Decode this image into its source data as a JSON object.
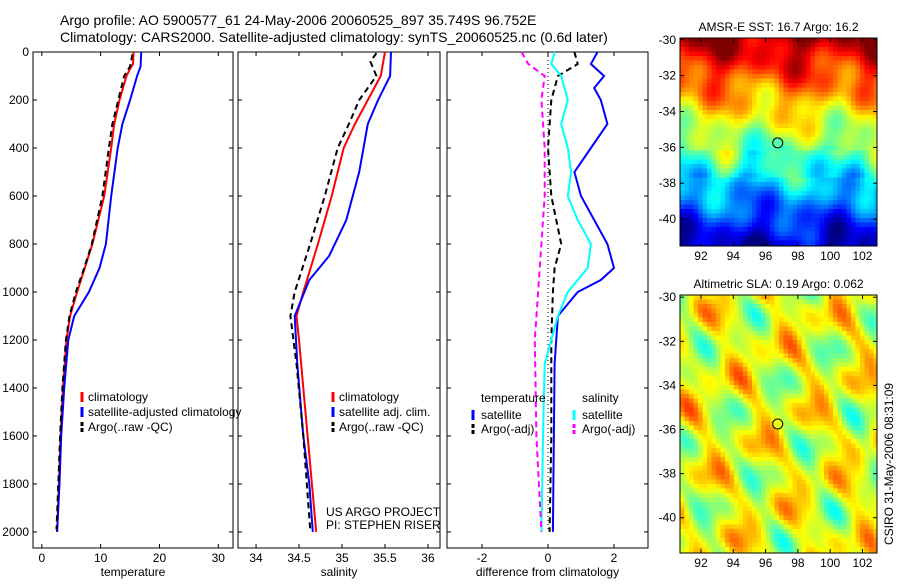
{
  "header": {
    "line1": "Argo profile: AO 5900577_61 24-May-2006 20060525_897 35.749S 96.752E",
    "line2": "Climatology: CARS2000. Satellite-adjusted climatology: synTS_20060525.nc (0.6d later)"
  },
  "credit": "CSIRO 31-May-2006 08:31:09",
  "colors": {
    "climatology": "#ff0000",
    "satellite": "#0000ff",
    "argo": "#000000",
    "sal_satellite": "#00ffff",
    "sal_argo": "#ff00ff"
  },
  "chart_data": [
    {
      "type": "line",
      "id": "temperature",
      "xlabel": "temperature",
      "ylabel": "",
      "xlim": [
        -1.5,
        32.5
      ],
      "ylim": [
        2067,
        0
      ],
      "xticks": [
        "0",
        "10",
        "20",
        "30"
      ],
      "xtick_values": [
        0,
        10,
        20,
        30
      ],
      "yticks": [
        "0",
        "200",
        "400",
        "600",
        "800",
        "1000",
        "1200",
        "1400",
        "1600",
        "1800",
        "2000"
      ],
      "ytick_values": [
        0,
        200,
        400,
        600,
        800,
        1000,
        1200,
        1400,
        1600,
        1800,
        2000
      ],
      "legend": [
        "climatology",
        "satellite-adjusted climatology",
        "Argo(..raw -QC)"
      ],
      "series": [
        {
          "name": "climatology",
          "color": "#ff0000",
          "dash": false,
          "points": [
            [
              15.6,
              0
            ],
            [
              15.5,
              50
            ],
            [
              15.0,
              70
            ],
            [
              14.4,
              100
            ],
            [
              13.2,
              200
            ],
            [
              12.3,
              300
            ],
            [
              11.8,
              400
            ],
            [
              10.6,
              600
            ],
            [
              8.6,
              800
            ],
            [
              7.3,
              900
            ],
            [
              6.0,
              1000
            ],
            [
              4.8,
              1100
            ],
            [
              4.2,
              1200
            ],
            [
              3.6,
              1400
            ],
            [
              3.2,
              1600
            ],
            [
              2.9,
              1800
            ],
            [
              2.6,
              2000
            ]
          ]
        },
        {
          "name": "satellite-adjusted climatology",
          "color": "#0000ff",
          "dash": false,
          "points": [
            [
              16.9,
              0
            ],
            [
              16.8,
              60
            ],
            [
              16.2,
              100
            ],
            [
              15.0,
              200
            ],
            [
              13.7,
              300
            ],
            [
              12.9,
              400
            ],
            [
              11.8,
              600
            ],
            [
              10.9,
              800
            ],
            [
              9.8,
              900
            ],
            [
              8.0,
              1000
            ],
            [
              5.5,
              1100
            ],
            [
              4.5,
              1200
            ],
            [
              3.8,
              1400
            ],
            [
              3.3,
              1600
            ],
            [
              3.0,
              1800
            ],
            [
              2.6,
              2000
            ]
          ]
        },
        {
          "name": "Argo(..raw -QC)",
          "color": "#000000",
          "dash": true,
          "points": [
            [
              15.4,
              10
            ],
            [
              15.0,
              60
            ],
            [
              14.0,
              100
            ],
            [
              13.0,
              200
            ],
            [
              12.0,
              300
            ],
            [
              11.4,
              400
            ],
            [
              10.3,
              600
            ],
            [
              8.5,
              800
            ],
            [
              7.2,
              900
            ],
            [
              5.8,
              1000
            ],
            [
              4.7,
              1100
            ],
            [
              4.1,
              1200
            ],
            [
              3.5,
              1400
            ],
            [
              3.1,
              1600
            ],
            [
              2.8,
              1800
            ],
            [
              2.5,
              1990
            ]
          ]
        }
      ]
    },
    {
      "type": "line",
      "id": "salinity",
      "xlabel": "salinity",
      "xlim": [
        33.79,
        36.14
      ],
      "ylim": [
        2067,
        0
      ],
      "xticks": [
        "34",
        "34.5",
        "35",
        "35.5",
        "36"
      ],
      "xtick_values": [
        34,
        34.5,
        35,
        35.5,
        36
      ],
      "legend": [
        "climatology",
        "satellite adj. clim.",
        "Argo(..raw -QC)"
      ],
      "annotation": [
        "US ARGO PROJECT",
        "PI: STEPHEN RISER"
      ],
      "series": [
        {
          "name": "climatology",
          "color": "#ff0000",
          "dash": false,
          "points": [
            [
              35.5,
              0
            ],
            [
              35.45,
              100
            ],
            [
              35.3,
              200
            ],
            [
              35.15,
              300
            ],
            [
              35.02,
              400
            ],
            [
              34.88,
              600
            ],
            [
              34.72,
              800
            ],
            [
              34.55,
              1000
            ],
            [
              34.47,
              1100
            ],
            [
              34.5,
              1200
            ],
            [
              34.55,
              1400
            ],
            [
              34.6,
              1600
            ],
            [
              34.65,
              1800
            ],
            [
              34.7,
              2000
            ]
          ]
        },
        {
          "name": "satellite adj. clim.",
          "color": "#0000ff",
          "dash": false,
          "points": [
            [
              35.57,
              0
            ],
            [
              35.56,
              100
            ],
            [
              35.42,
              200
            ],
            [
              35.3,
              300
            ],
            [
              35.2,
              500
            ],
            [
              35.05,
              700
            ],
            [
              34.85,
              850
            ],
            [
              34.62,
              950
            ],
            [
              34.45,
              1100
            ],
            [
              34.48,
              1300
            ],
            [
              34.55,
              1600
            ],
            [
              34.62,
              1800
            ],
            [
              34.66,
              2000
            ]
          ]
        },
        {
          "name": "Argo(..raw -QC)",
          "color": "#000000",
          "dash": true,
          "points": [
            [
              35.4,
              5
            ],
            [
              35.33,
              40
            ],
            [
              35.4,
              100
            ],
            [
              35.2,
              200
            ],
            [
              35.08,
              300
            ],
            [
              34.95,
              400
            ],
            [
              34.8,
              600
            ],
            [
              34.63,
              800
            ],
            [
              34.45,
              1000
            ],
            [
              34.4,
              1100
            ],
            [
              34.47,
              1300
            ],
            [
              34.55,
              1600
            ],
            [
              34.63,
              1990
            ]
          ]
        }
      ]
    },
    {
      "type": "line",
      "id": "difference",
      "xlabel": "difference from climatology",
      "xlim": [
        -3.06,
        3.03
      ],
      "ylim": [
        2067,
        0
      ],
      "xticks": [
        "-2",
        "0",
        "2"
      ],
      "xtick_values": [
        -2,
        0,
        2
      ],
      "legend_titles": [
        "temperature",
        "salinity"
      ],
      "legend": [
        "satellite",
        "Argo(-adj)",
        "satellite",
        "Argo(-adj)"
      ],
      "series": [
        {
          "name": "temperature satellite",
          "color": "#0000ff",
          "dash": false,
          "points": [
            [
              1.5,
              0
            ],
            [
              1.3,
              50
            ],
            [
              1.7,
              100
            ],
            [
              1.4,
              150
            ],
            [
              1.6,
              200
            ],
            [
              1.8,
              300
            ],
            [
              1.3,
              400
            ],
            [
              0.8,
              500
            ],
            [
              1.0,
              600
            ],
            [
              1.4,
              700
            ],
            [
              1.8,
              800
            ],
            [
              2.0,
              900
            ],
            [
              1.6,
              950
            ],
            [
              0.9,
              1000
            ],
            [
              0.3,
              1100
            ],
            [
              0.2,
              1300
            ],
            [
              0.15,
              2000
            ]
          ]
        },
        {
          "name": "temperature Argo(-adj)",
          "color": "#000000",
          "dash": true,
          "points": [
            [
              0.8,
              0
            ],
            [
              0.9,
              50
            ],
            [
              0.3,
              100
            ],
            [
              0.1,
              200
            ],
            [
              0.0,
              400
            ],
            [
              0.1,
              600
            ],
            [
              0.4,
              800
            ],
            [
              0.2,
              900
            ],
            [
              0.15,
              1000
            ],
            [
              0.1,
              1200
            ],
            [
              0.1,
              1600
            ],
            [
              0.05,
              2000
            ]
          ]
        },
        {
          "name": "salinity satellite",
          "color": "#00ffff",
          "dash": false,
          "points": [
            [
              0.2,
              0
            ],
            [
              0.1,
              50
            ],
            [
              0.4,
              100
            ],
            [
              0.6,
              200
            ],
            [
              0.4,
              300
            ],
            [
              0.6,
              400
            ],
            [
              0.7,
              500
            ],
            [
              0.6,
              600
            ],
            [
              0.9,
              700
            ],
            [
              1.3,
              800
            ],
            [
              1.2,
              900
            ],
            [
              0.6,
              1000
            ],
            [
              0.3,
              1100
            ],
            [
              -0.1,
              1300
            ],
            [
              -0.15,
              1600
            ],
            [
              -0.2,
              2000
            ]
          ]
        },
        {
          "name": "salinity Argo(-adj)",
          "color": "#ff00ff",
          "dash": true,
          "points": [
            [
              -0.8,
              0
            ],
            [
              -0.6,
              50
            ],
            [
              -0.1,
              100
            ],
            [
              -0.2,
              200
            ],
            [
              -0.1,
              400
            ],
            [
              -0.1,
              600
            ],
            [
              -0.2,
              800
            ],
            [
              -0.3,
              1000
            ],
            [
              -0.4,
              1200
            ],
            [
              -0.35,
              1600
            ],
            [
              -0.2,
              2000
            ]
          ]
        }
      ]
    },
    {
      "type": "heatmap",
      "id": "sst-map",
      "title": "AMSR-E SST: 16.7 Argo: 16.2",
      "xlim": [
        90.7,
        102.9
      ],
      "ylim": [
        -41.5,
        -29.9
      ],
      "xticks": [
        "92",
        "94",
        "96",
        "98",
        "100",
        "102"
      ],
      "xtick_values": [
        92,
        94,
        96,
        98,
        100,
        102
      ],
      "yticks": [
        "-30",
        "-32",
        "-34",
        "-36",
        "-38",
        "-40"
      ],
      "ytick_values": [
        -30,
        -32,
        -34,
        -36,
        -38,
        -40
      ],
      "marker": {
        "lon": 96.752,
        "lat": -35.749
      }
    },
    {
      "type": "heatmap",
      "id": "sla-map",
      "title": "Altimetric SLA: 0.19 Argo: 0.062",
      "xlim": [
        90.7,
        102.9
      ],
      "ylim": [
        -41.6,
        -29.9
      ],
      "xticks": [
        "92",
        "94",
        "96",
        "98",
        "100",
        "102"
      ],
      "xtick_values": [
        92,
        94,
        96,
        98,
        100,
        102
      ],
      "yticks": [
        "-30",
        "-32",
        "-34",
        "-36",
        "-38",
        "-40"
      ],
      "ytick_values": [
        -30,
        -32,
        -34,
        -36,
        -38,
        -40
      ],
      "marker": {
        "lon": 96.752,
        "lat": -35.749
      }
    }
  ]
}
